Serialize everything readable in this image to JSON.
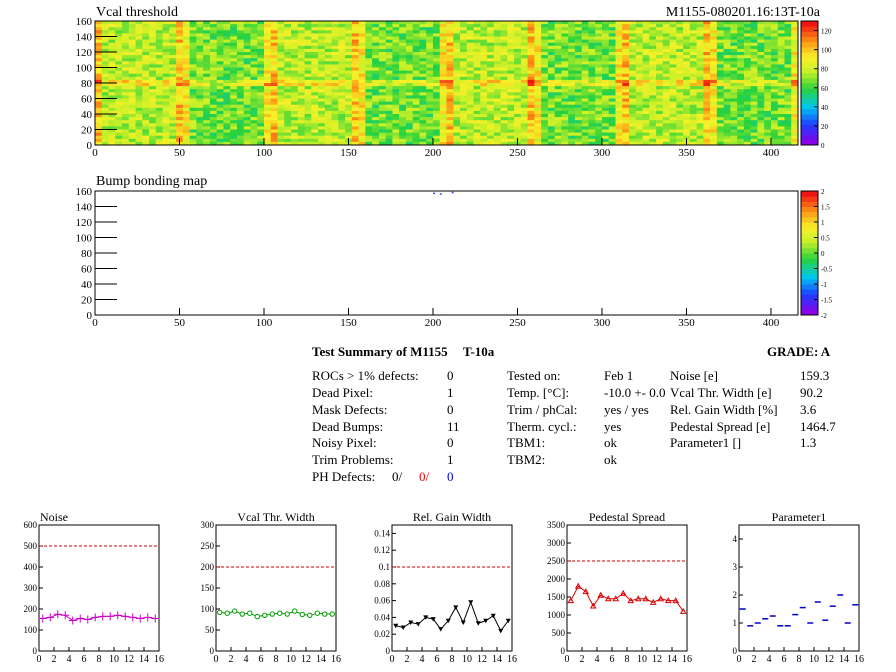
{
  "module_id": "M1155-080201.16:13T-10a",
  "maps": [
    {
      "title": "Vcal threshold",
      "x_ticks": [
        "0",
        "50",
        "100",
        "150",
        "200",
        "250",
        "300",
        "350",
        "400"
      ],
      "y_ticks": [
        "0",
        "20",
        "40",
        "60",
        "80",
        "100",
        "120",
        "140",
        "160"
      ],
      "z_ticks": [
        "0",
        "20",
        "40",
        "60",
        "80",
        "100",
        "120"
      ],
      "xlim": [
        0,
        416
      ],
      "ylim": [
        0,
        160
      ],
      "zlim": [
        0,
        130
      ]
    },
    {
      "title": "Bump bonding map",
      "x_ticks": [
        "0",
        "50",
        "100",
        "150",
        "200",
        "250",
        "300",
        "350",
        "400"
      ],
      "y_ticks": [
        "0",
        "20",
        "40",
        "60",
        "80",
        "100",
        "120",
        "140",
        "160"
      ],
      "z_ticks": [
        "-2",
        "-1.5",
        "-1",
        "-0.5",
        "0",
        "0.5",
        "1",
        "1.5",
        "2"
      ],
      "xlim": [
        0,
        416
      ],
      "ylim": [
        0,
        160
      ],
      "zlim": [
        -2,
        2
      ]
    }
  ],
  "summary": {
    "heading": "Test Summary of M1155",
    "temp_label": "T-10a",
    "grade": "GRADE:  A",
    "left_labels": [
      "ROCs > 1% defects:",
      "Dead Pixel:",
      "Mask Defects:",
      "Dead Bumps:",
      "Noisy Pixel:",
      "Trim Problems:"
    ],
    "left_values": [
      "0",
      "1",
      "0",
      "11",
      "0",
      "1"
    ],
    "ph_label": "PH Defects:",
    "ph_values": [
      "0/",
      "0/",
      "0"
    ],
    "mid_labels": [
      "Tested on:",
      "Temp. [°C]:",
      "Trim / phCal:",
      "Therm. cycl.:",
      "TBM1:",
      "TBM2:"
    ],
    "mid_values": [
      "Feb 1",
      "-10.0 +- 0.0",
      "yes / yes",
      "yes",
      "ok",
      "ok"
    ],
    "right_labels": [
      "Noise [e]",
      "Vcal Thr. Width [e]",
      "Rel. Gain Width [%]",
      "Pedestal Spread [e]",
      "Parameter1 []"
    ],
    "right_values": [
      "159.3",
      "90.2",
      "3.6",
      "1464.7",
      "1.3"
    ]
  },
  "chart_data": [
    {
      "type": "line",
      "title": "Noise",
      "color": "#cc00cc",
      "marker": "plus",
      "x": [
        0,
        1,
        2,
        3,
        4,
        5,
        6,
        7,
        8,
        9,
        10,
        11,
        12,
        13,
        14,
        15
      ],
      "values": [
        155,
        160,
        175,
        170,
        145,
        155,
        150,
        160,
        165,
        165,
        170,
        165,
        160,
        155,
        160,
        155
      ],
      "ylim": [
        0,
        600
      ],
      "yticks": [
        "0",
        "100",
        "200",
        "300",
        "400",
        "500",
        "600"
      ],
      "cut": 500
    },
    {
      "type": "line",
      "title": "Vcal Thr. Width",
      "color": "#009900",
      "marker": "circle",
      "x": [
        0,
        1,
        2,
        3,
        4,
        5,
        6,
        7,
        8,
        9,
        10,
        11,
        12,
        13,
        14,
        15
      ],
      "values": [
        92,
        90,
        95,
        88,
        90,
        82,
        85,
        88,
        90,
        88,
        95,
        87,
        85,
        90,
        88,
        88
      ],
      "ylim": [
        0,
        300
      ],
      "yticks": [
        "0",
        "50",
        "100",
        "150",
        "200",
        "250",
        "300"
      ],
      "cut": 200
    },
    {
      "type": "line",
      "title": "Rel. Gain Width",
      "color": "#000000",
      "marker": "triangle-down",
      "x": [
        0,
        1,
        2,
        3,
        4,
        5,
        6,
        7,
        8,
        9,
        10,
        11,
        12,
        13,
        14,
        15
      ],
      "values": [
        0.03,
        0.028,
        0.034,
        0.032,
        0.04,
        0.038,
        0.026,
        0.036,
        0.052,
        0.034,
        0.058,
        0.033,
        0.036,
        0.042,
        0.024,
        0.036
      ],
      "ylim": [
        0,
        0.15
      ],
      "yticks": [
        "0",
        "0.02",
        "0.04",
        "0.06",
        "0.08",
        "0.1",
        "0.12",
        "0.14"
      ],
      "cut": 0.1
    },
    {
      "type": "line",
      "title": "Pedestal Spread",
      "color": "#dd0000",
      "marker": "triangle-up",
      "x": [
        0,
        1,
        2,
        3,
        4,
        5,
        6,
        7,
        8,
        9,
        10,
        11,
        12,
        13,
        14,
        15
      ],
      "values": [
        1400,
        1800,
        1650,
        1250,
        1550,
        1450,
        1450,
        1600,
        1400,
        1450,
        1450,
        1350,
        1450,
        1400,
        1400,
        1100
      ],
      "ylim": [
        0,
        3500
      ],
      "yticks": [
        "0",
        "500",
        "1000",
        "1500",
        "2000",
        "2500",
        "3000",
        "3500"
      ],
      "cut": 2500
    },
    {
      "type": "scatter",
      "title": "Parameter1",
      "color": "#0000cc",
      "marker": "dash",
      "x": [
        0,
        1,
        2,
        3,
        4,
        5,
        6,
        7,
        8,
        9,
        10,
        11,
        12,
        13,
        14,
        15
      ],
      "values": [
        1.5,
        0.9,
        1.0,
        1.15,
        1.25,
        0.9,
        0.9,
        1.3,
        1.55,
        1.0,
        1.75,
        1.1,
        1.6,
        2.0,
        1.0,
        1.65
      ],
      "ylim": [
        0,
        4.5
      ],
      "yticks": [
        "0",
        "1",
        "2",
        "3",
        "4"
      ],
      "cut": null
    }
  ],
  "small_x_ticks": [
    "0",
    "2",
    "4",
    "6",
    "8",
    "10",
    "12",
    "14",
    "16"
  ]
}
